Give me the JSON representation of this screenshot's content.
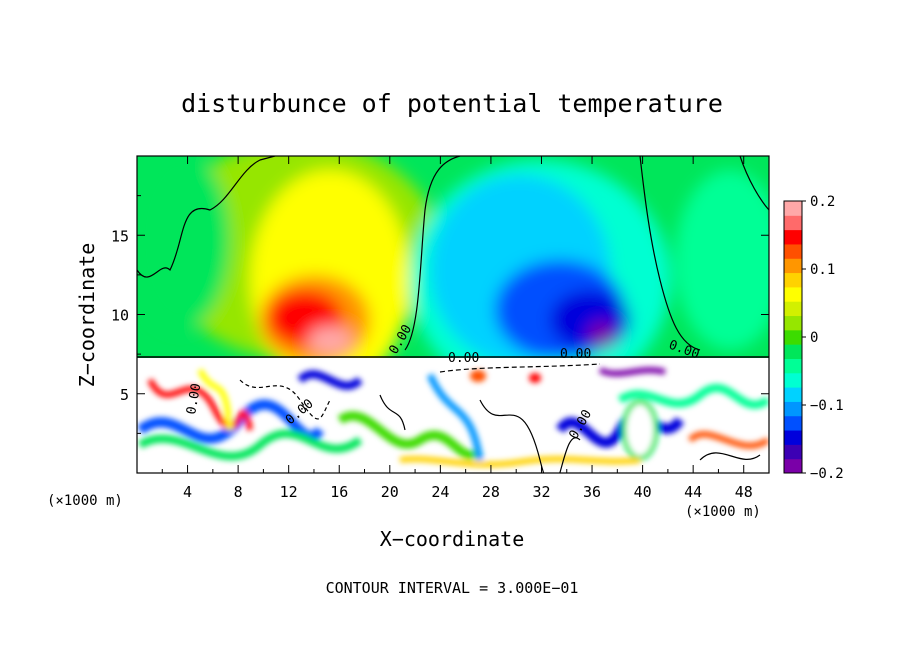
{
  "chart_data": {
    "type": "heatmap",
    "title": "disturbunce of potential temperature",
    "xlabel": "X−coordinate",
    "ylabel": "Z−coordinate",
    "x_unit_left": "(×1000 m)",
    "x_unit_right": "(×1000 m)",
    "x_ticks": [
      "4",
      "8",
      "12",
      "16",
      "20",
      "24",
      "28",
      "32",
      "36",
      "40",
      "44",
      "48"
    ],
    "y_ticks": [
      "5",
      "10",
      "15"
    ],
    "xlim": [
      0,
      50
    ],
    "ylim": [
      0,
      20
    ],
    "colorbar": {
      "ticks": [
        "0.2",
        "0.1",
        "0",
        "−0.1",
        "−0.2"
      ],
      "range": [
        -0.2,
        0.2
      ],
      "colors": [
        "#7a00a8",
        "#3c00b4",
        "#0000dc",
        "#0050ff",
        "#0096ff",
        "#00d2ff",
        "#00ffd2",
        "#00ff96",
        "#00e65a",
        "#3cdc00",
        "#96e600",
        "#d2f000",
        "#ffff00",
        "#ffd200",
        "#ff9600",
        "#ff5000",
        "#ff0000",
        "#ff6a6a",
        "#ffa8a8"
      ]
    },
    "contour_labels": [
      "0.00",
      "0.00",
      "0.00",
      "0.00",
      "0.00",
      "0.00",
      "0.00"
    ],
    "footer": "CONTOUR INTERVAL = 3.000E−01"
  }
}
